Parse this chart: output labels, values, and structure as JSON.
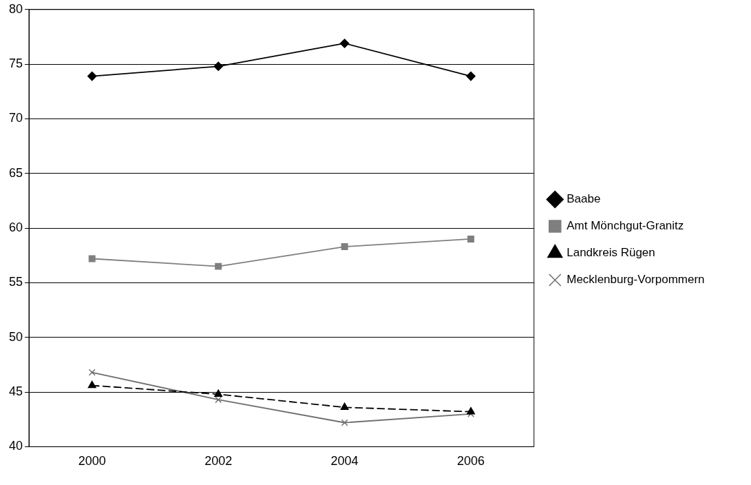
{
  "chart_data": {
    "type": "line",
    "categories": [
      "2000",
      "2002",
      "2004",
      "2006"
    ],
    "series": [
      {
        "name": "Baabe",
        "color": "#000000",
        "marker": "diamond",
        "line_style": "solid",
        "values": [
          73.9,
          74.8,
          76.9,
          73.9
        ]
      },
      {
        "name": "Amt Mönchgut-Granitz",
        "color": "#7f7f7f",
        "marker": "square",
        "line_style": "solid",
        "values": [
          57.2,
          56.5,
          58.3,
          59.0
        ]
      },
      {
        "name": "Landkreis Rügen",
        "color": "#000000",
        "marker": "triangle",
        "line_style": "dashed",
        "values": [
          45.6,
          44.8,
          43.6,
          43.2
        ]
      },
      {
        "name": "Mecklenburg-Vorpommern",
        "color": "#6e6e6e",
        "marker": "cross",
        "line_style": "solid",
        "values": [
          46.8,
          44.3,
          42.2,
          43.0
        ]
      }
    ],
    "ylim": [
      40,
      80
    ],
    "yticks": [
      40,
      45,
      50,
      55,
      60,
      65,
      70,
      75,
      80
    ],
    "grid": "y",
    "legend": "right"
  }
}
